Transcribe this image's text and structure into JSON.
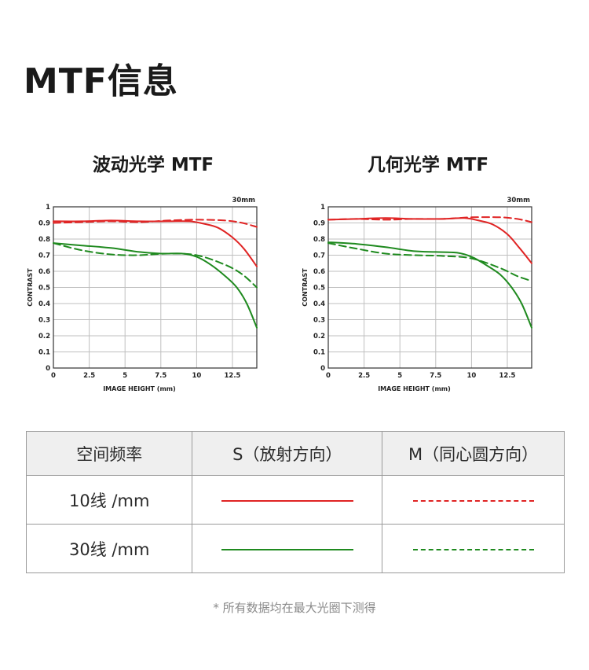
{
  "page": {
    "title": "MTF信息"
  },
  "colors": {
    "s10": "#e02424",
    "s30": "#1f8a1f",
    "grid": "#bfbfbf",
    "axis": "#333333"
  },
  "legend": {
    "headers": [
      "空间频率",
      "S（放射方向）",
      "M（同心圆方向）"
    ],
    "rows": [
      {
        "label": "10线 /mm",
        "color": "#e02424"
      },
      {
        "label": "30线 /mm",
        "color": "#1f8a1f"
      }
    ]
  },
  "footnote": "* 所有数据均在最大光圈下测得",
  "chart_data": [
    {
      "type": "line",
      "title": "波动光学 MTF",
      "corner_label": "30mm",
      "xlabel": "IMAGE HEIGHT (mm)",
      "ylabel": "CONTRAST",
      "xlim": [
        0,
        14.2
      ],
      "ylim": [
        0,
        1
      ],
      "xticks": [
        0,
        2.5,
        5,
        7.5,
        10,
        12.5
      ],
      "xtick_labels": [
        "0",
        "2.5",
        "5",
        "7.5",
        "10",
        "12.5"
      ],
      "yticks": [
        0,
        0.1,
        0.2,
        0.3,
        0.4,
        0.5,
        0.6,
        0.7,
        0.8,
        0.9,
        1
      ],
      "ytick_labels": [
        "0",
        "0.1",
        "0.2",
        "0.3",
        "0.4",
        "0.5",
        "0.6",
        "0.7",
        "0.8",
        "0.9",
        "1"
      ],
      "grid": true,
      "series": [
        {
          "freq": "10线 /mm",
          "direction": "S",
          "style": "solid",
          "color": "#e02424",
          "x": [
            0,
            2,
            4,
            6,
            8,
            9.5,
            10.5,
            11.5,
            12.5,
            13.3,
            14.2
          ],
          "y": [
            0.91,
            0.91,
            0.915,
            0.91,
            0.91,
            0.91,
            0.895,
            0.87,
            0.81,
            0.74,
            0.63
          ]
        },
        {
          "freq": "10线 /mm",
          "direction": "M",
          "style": "dashed",
          "color": "#e02424",
          "x": [
            0,
            2,
            4,
            6,
            8,
            10,
            12,
            13.2,
            14.2
          ],
          "y": [
            0.9,
            0.905,
            0.91,
            0.905,
            0.915,
            0.92,
            0.915,
            0.9,
            0.875
          ]
        },
        {
          "freq": "30线 /mm",
          "direction": "S",
          "style": "solid",
          "color": "#1f8a1f",
          "x": [
            0,
            2,
            4,
            6,
            7.5,
            9,
            10,
            11,
            12,
            12.8,
            13.5,
            14.2
          ],
          "y": [
            0.775,
            0.76,
            0.745,
            0.72,
            0.71,
            0.71,
            0.69,
            0.64,
            0.57,
            0.5,
            0.4,
            0.25
          ]
        },
        {
          "freq": "30线 /mm",
          "direction": "M",
          "style": "dashed",
          "color": "#1f8a1f",
          "x": [
            0,
            2,
            4,
            6,
            8,
            10,
            12,
            13.2,
            14.2
          ],
          "y": [
            0.775,
            0.73,
            0.705,
            0.7,
            0.71,
            0.7,
            0.64,
            0.58,
            0.5
          ]
        }
      ]
    },
    {
      "type": "line",
      "title": "几何光学 MTF",
      "corner_label": "30mm",
      "xlabel": "IMAGE HEIGHT (mm)",
      "ylabel": "CONTRAST",
      "xlim": [
        0,
        14.2
      ],
      "ylim": [
        0,
        1
      ],
      "xticks": [
        0,
        2.5,
        5,
        7.5,
        10,
        12.5
      ],
      "xtick_labels": [
        "0",
        "2.5",
        "5",
        "7.5",
        "10",
        "12.5"
      ],
      "yticks": [
        0,
        0.1,
        0.2,
        0.3,
        0.4,
        0.5,
        0.6,
        0.7,
        0.8,
        0.9,
        1
      ],
      "ytick_labels": [
        "0",
        "0.1",
        "0.2",
        "0.3",
        "0.4",
        "0.5",
        "0.6",
        "0.7",
        "0.8",
        "0.9",
        "1"
      ],
      "grid": true,
      "series": [
        {
          "freq": "10线 /mm",
          "direction": "S",
          "style": "solid",
          "color": "#e02424",
          "x": [
            0,
            2,
            4,
            6,
            8,
            9.5,
            10.5,
            11.5,
            12.5,
            13.3,
            14.2
          ],
          "y": [
            0.92,
            0.925,
            0.93,
            0.925,
            0.925,
            0.93,
            0.915,
            0.89,
            0.83,
            0.75,
            0.65
          ]
        },
        {
          "freq": "10线 /mm",
          "direction": "M",
          "style": "dashed",
          "color": "#e02424",
          "x": [
            0,
            2,
            4,
            6,
            8,
            10,
            12,
            13.2,
            14.2
          ],
          "y": [
            0.92,
            0.925,
            0.92,
            0.925,
            0.925,
            0.935,
            0.935,
            0.925,
            0.905
          ]
        },
        {
          "freq": "30线 /mm",
          "direction": "S",
          "style": "solid",
          "color": "#1f8a1f",
          "x": [
            0,
            2,
            4,
            6,
            7.5,
            9,
            10,
            11,
            12,
            12.8,
            13.5,
            14.2
          ],
          "y": [
            0.78,
            0.77,
            0.75,
            0.725,
            0.72,
            0.715,
            0.69,
            0.64,
            0.58,
            0.5,
            0.4,
            0.25
          ]
        },
        {
          "freq": "30线 /mm",
          "direction": "M",
          "style": "dashed",
          "color": "#1f8a1f",
          "x": [
            0,
            2,
            4,
            6,
            8,
            10,
            12,
            13.2,
            14.2
          ],
          "y": [
            0.775,
            0.74,
            0.71,
            0.7,
            0.695,
            0.68,
            0.62,
            0.57,
            0.54
          ]
        }
      ]
    }
  ]
}
